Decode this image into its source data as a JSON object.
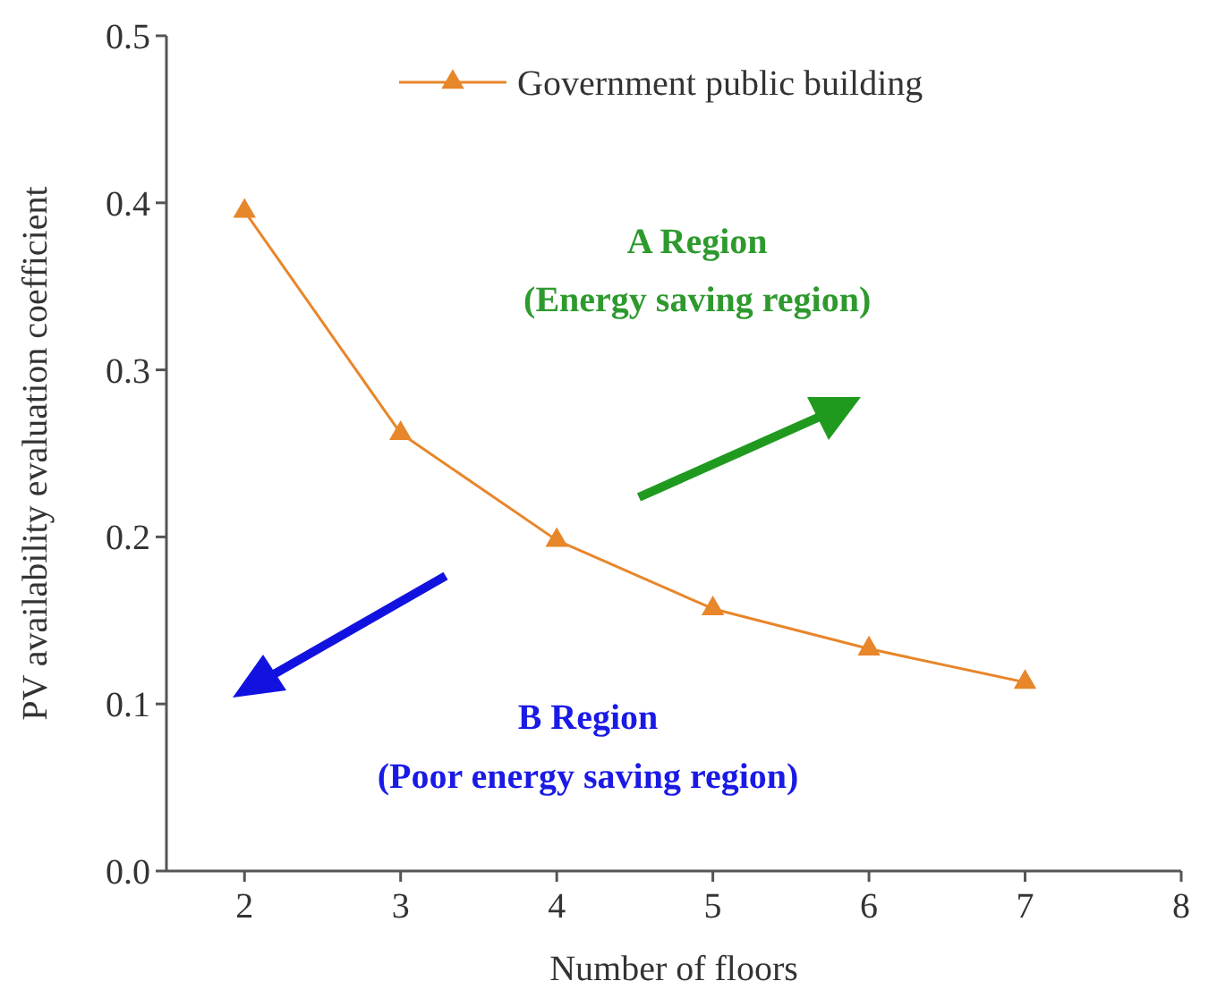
{
  "chart_data": {
    "type": "line",
    "xlabel": "Number of floors",
    "ylabel": "PV availability evaluation coefficient",
    "x": [
      2,
      3,
      4,
      5,
      6,
      7
    ],
    "series": [
      {
        "name": "Government public building",
        "color": "#e8862a",
        "values": [
          0.395,
          0.262,
          0.198,
          0.157,
          0.133,
          0.113
        ]
      }
    ],
    "xlim": [
      1.5,
      8
    ],
    "xticks": [
      2,
      3,
      4,
      5,
      6,
      7,
      8
    ],
    "ylim": [
      0,
      0.5
    ],
    "yticks": [
      {
        "value": 0,
        "label": "0.0"
      },
      0.1,
      0.2,
      0.3,
      0.4,
      0.5
    ],
    "marker": "triangle",
    "line_style": "solid",
    "legend": "top",
    "grid": false,
    "annotations": [
      "A Region",
      "(Energy saving region)",
      "B Region",
      "(Poor energy saving region)"
    ]
  }
}
